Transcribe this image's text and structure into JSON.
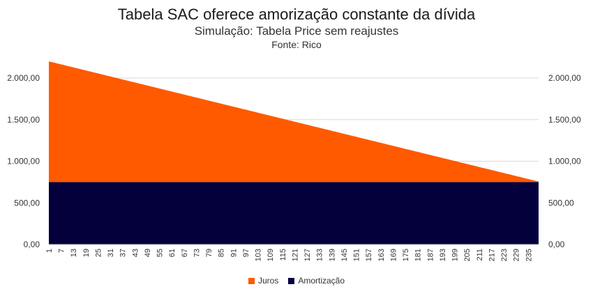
{
  "chart_data": {
    "type": "area",
    "title": "Tabela SAC oferece amorização constante da dívida",
    "subtitle": "Simulação: Tabela Price sem reajustes",
    "source": "Fonte: Rico",
    "x_ticks": [
      "1",
      "7",
      "13",
      "19",
      "25",
      "31",
      "37",
      "43",
      "49",
      "55",
      "61",
      "67",
      "73",
      "79",
      "85",
      "91",
      "97",
      "103",
      "109",
      "115",
      "121",
      "127",
      "133",
      "139",
      "145",
      "151",
      "157",
      "163",
      "169",
      "175",
      "181",
      "187",
      "193",
      "199",
      "205",
      "211",
      "217",
      "223",
      "229",
      "235"
    ],
    "y_ticks": [
      "0,00",
      "500,00",
      "1.000,00",
      "1.500,00",
      "2.000,00"
    ],
    "y2_ticks": [
      "0,00",
      "500,00",
      "1.000,00",
      "1.500,00",
      "2.000,00"
    ],
    "ylim": [
      0,
      2000
    ],
    "y_step": 500,
    "n_periods": 240,
    "series": [
      {
        "name": "Juros",
        "color": "#ff5a00",
        "values_start": 1450,
        "values_end": 6
      },
      {
        "name": "Amortização",
        "color": "#03003b",
        "values_constant": 750
      }
    ],
    "legend_position": "bottom",
    "grid": true
  }
}
